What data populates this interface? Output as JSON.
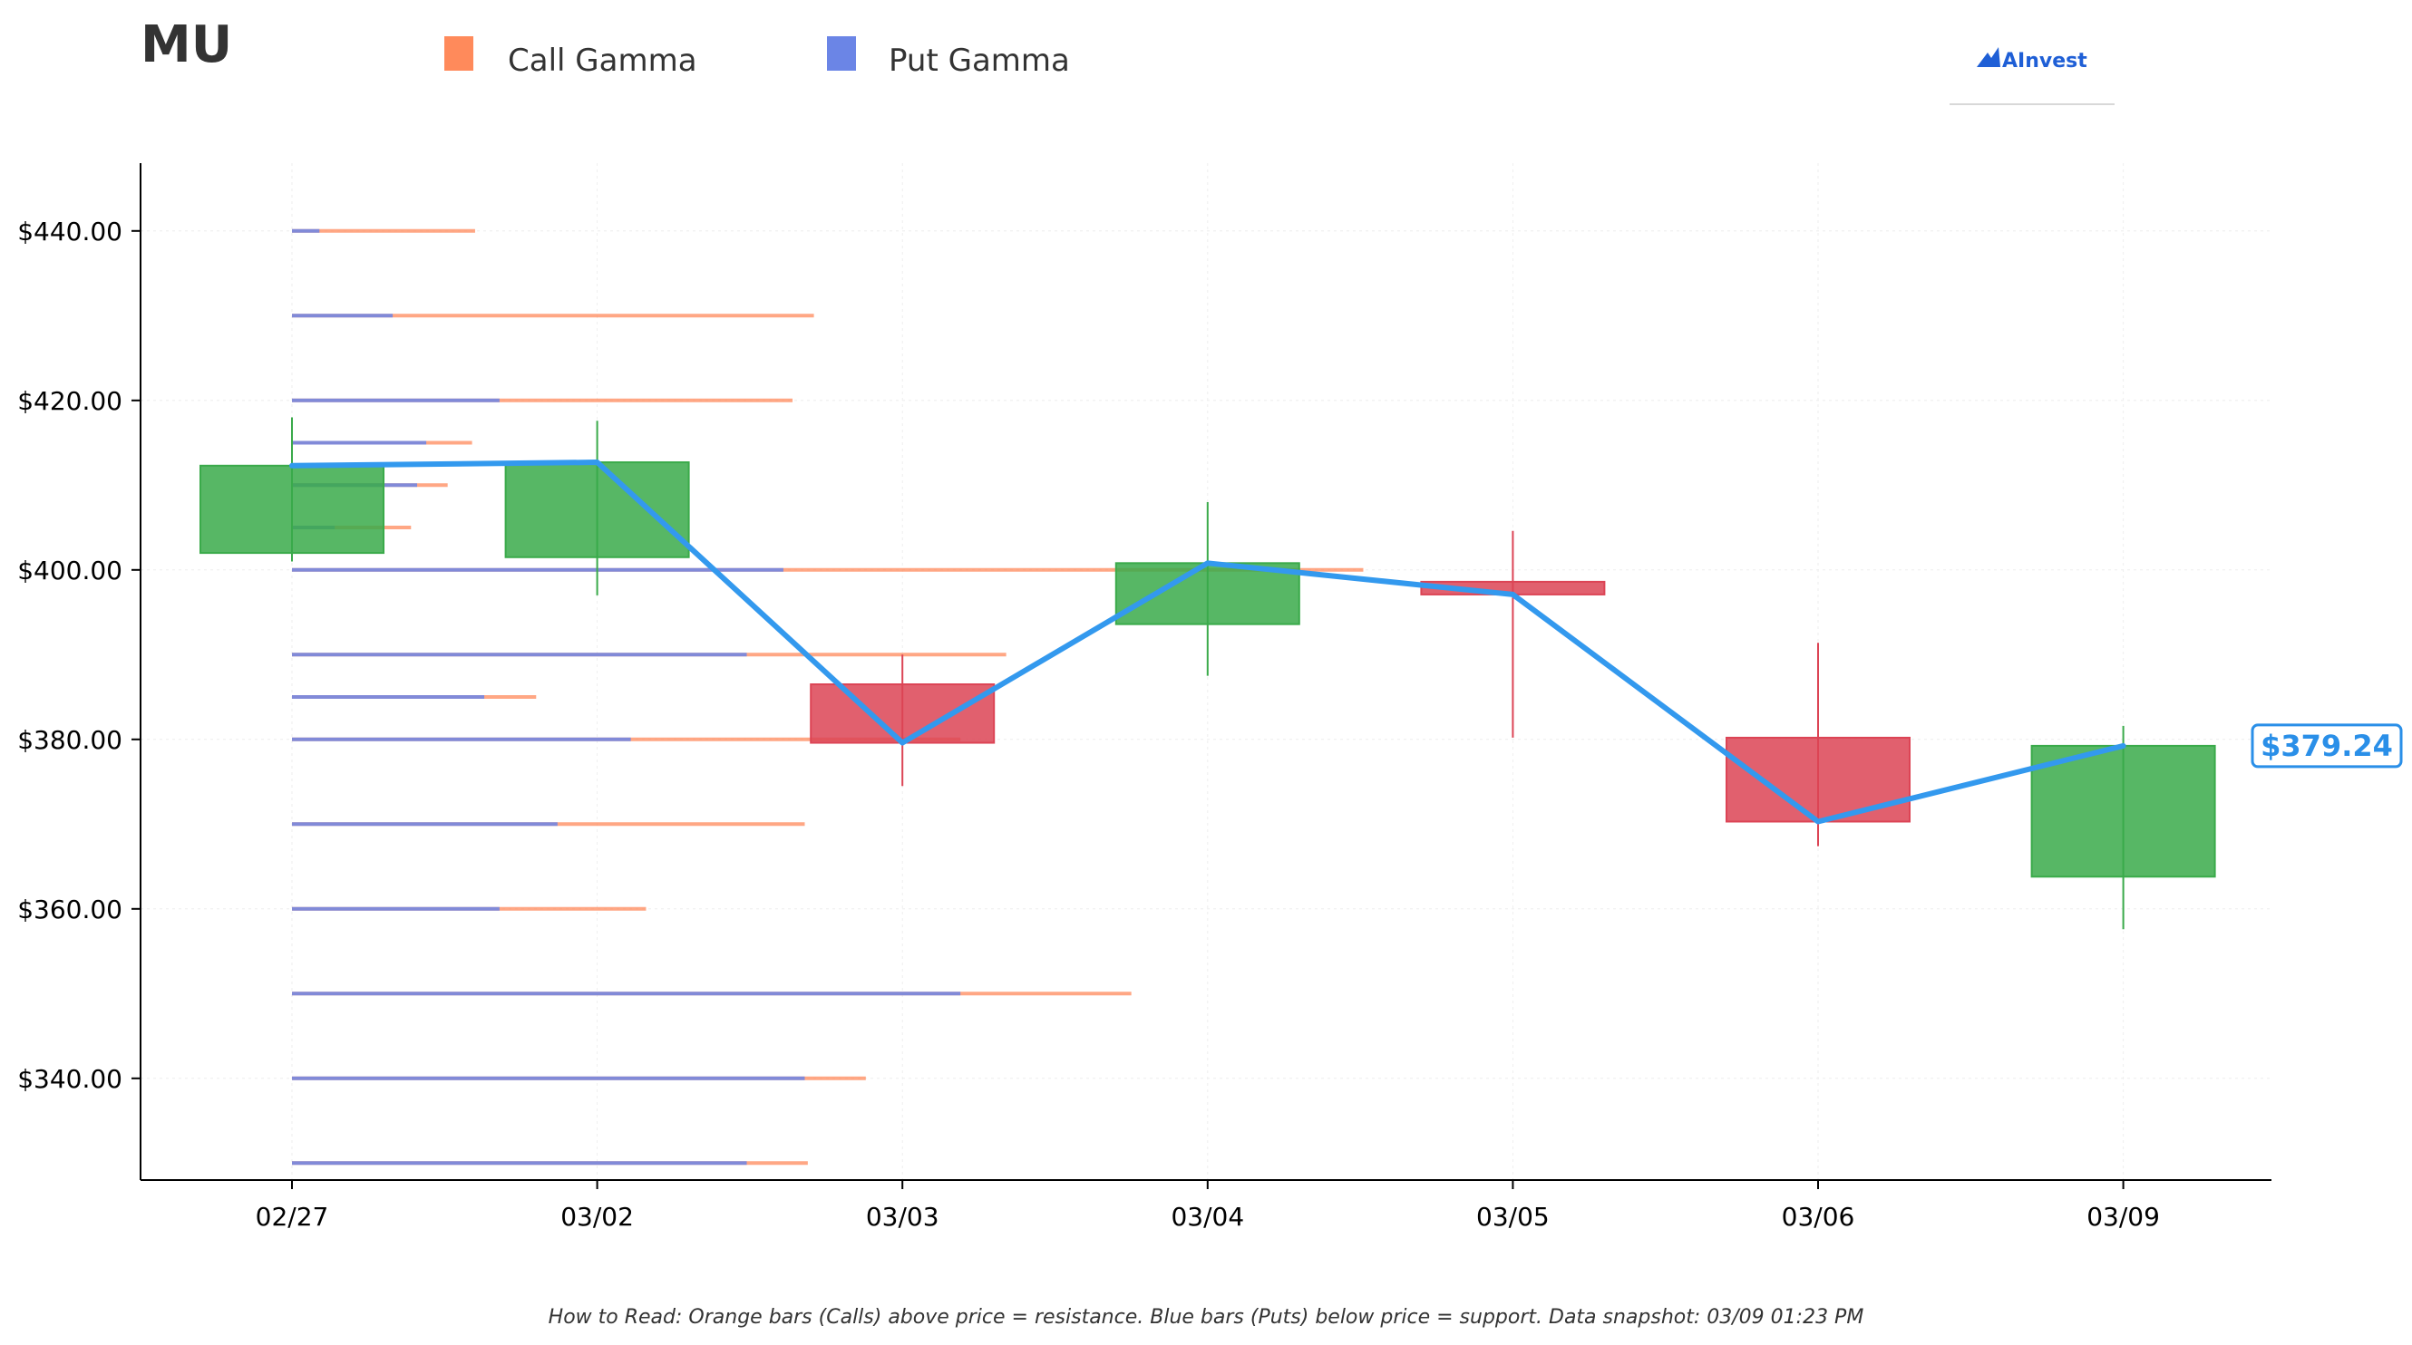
{
  "chart_data": {
    "type": "candlestick",
    "title": "MU",
    "legend": {
      "placement": "top",
      "entries": [
        {
          "label": "Call Gamma",
          "color": "#ff8a5b"
        },
        {
          "label": "Put Gamma",
          "color": "#6b85e6"
        }
      ]
    },
    "brand": "AInvest",
    "x": [
      "02/27",
      "03/02",
      "03/03",
      "03/04",
      "03/05",
      "03/06",
      "03/09"
    ],
    "ylim": [
      328,
      448
    ],
    "yticks": [
      340,
      360,
      380,
      400,
      420,
      440
    ],
    "ytick_labels": [
      "$340.00",
      "$360.00",
      "$380.00",
      "$400.00",
      "$420.00",
      "$440.00"
    ],
    "candles": [
      {
        "date": "02/27",
        "open": 402.0,
        "high": 418.0,
        "low": 401.0,
        "close": 412.3
      },
      {
        "date": "03/02",
        "open": 401.5,
        "high": 417.6,
        "low": 397.0,
        "close": 412.7
      },
      {
        "date": "03/03",
        "open": 386.5,
        "high": 390.0,
        "low": 374.5,
        "close": 379.6
      },
      {
        "date": "03/04",
        "open": 393.6,
        "high": 408.0,
        "low": 387.5,
        "close": 400.8
      },
      {
        "date": "03/05",
        "open": 398.6,
        "high": 404.6,
        "low": 380.2,
        "close": 397.1
      },
      {
        "date": "03/06",
        "open": 380.2,
        "high": 391.4,
        "low": 367.4,
        "close": 370.3
      },
      {
        "date": "03/09",
        "open": 363.8,
        "high": 381.6,
        "low": 357.6,
        "close": 379.24
      }
    ],
    "close_line": {
      "color": "#3399ee",
      "values": [
        412.3,
        412.7,
        379.6,
        400.8,
        397.1,
        370.3,
        379.24
      ]
    },
    "gamma_levels": [
      {
        "strike": 440,
        "put": 0.09,
        "call": 0.6
      },
      {
        "strike": 430,
        "put": 0.33,
        "call": 1.71
      },
      {
        "strike": 420,
        "put": 0.68,
        "call": 1.64
      },
      {
        "strike": 415,
        "put": 0.44,
        "call": 0.59
      },
      {
        "strike": 410,
        "put": 0.41,
        "call": 0.51
      },
      {
        "strike": 405,
        "put": 0.14,
        "call": 0.39
      },
      {
        "strike": 400,
        "put": 1.61,
        "call": 3.51
      },
      {
        "strike": 390,
        "put": 1.49,
        "call": 2.34
      },
      {
        "strike": 385,
        "put": 0.63,
        "call": 0.8
      },
      {
        "strike": 380,
        "put": 1.11,
        "call": 2.19
      },
      {
        "strike": 370,
        "put": 0.87,
        "call": 1.68
      },
      {
        "strike": 360,
        "put": 0.68,
        "call": 1.16
      },
      {
        "strike": 350,
        "put": 2.19,
        "call": 2.75
      },
      {
        "strike": 340,
        "put": 1.68,
        "call": 1.88
      },
      {
        "strike": 330,
        "put": 1.49,
        "call": 1.69
      }
    ],
    "current_price": {
      "value": 379.24,
      "label": "$379.24",
      "color": "#2a8fe8"
    },
    "colors": {
      "up": "#3aaa4a",
      "down": "#dc4455",
      "call": "#ff8a5b",
      "put": "#6b85e6"
    },
    "grid": true,
    "footnote": "How to Read: Orange bars (Calls) above price = resistance. Blue bars (Puts) below price = support. Data snapshot: 03/09 01:23 PM"
  }
}
